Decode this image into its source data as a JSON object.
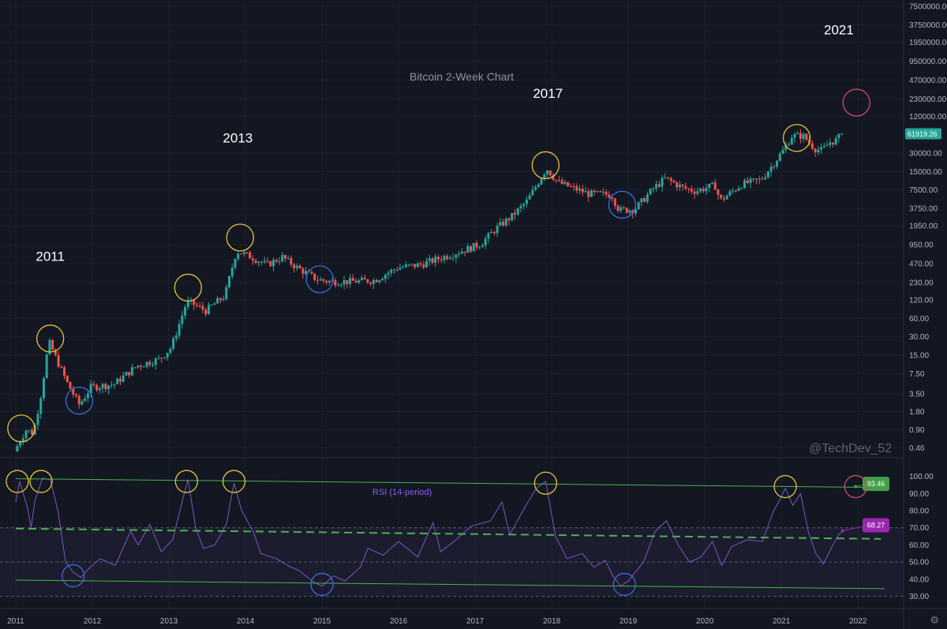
{
  "chart_data": [
    {
      "type": "candlestick",
      "title": "Bitcoin 2-Week Chart",
      "y_scale": "log",
      "ylim": [
        0.4,
        7500000
      ],
      "y_ticks": [
        "7500000.00",
        "3750000.00",
        "1950000.00",
        "950000.00",
        "470000.00",
        "230000.00",
        "120000.00",
        "61919.26",
        "30000.00",
        "15000.00",
        "7500.00",
        "3750.00",
        "1950.00",
        "950.00",
        "470.00",
        "230.00",
        "120.00",
        "60.00",
        "30.00",
        "15.00",
        "7.50",
        "3.50",
        "1.80",
        "0.90",
        "0.46"
      ],
      "x_ticks": [
        "2011",
        "2012",
        "2013",
        "2014",
        "2015",
        "2016",
        "2017",
        "2018",
        "2019",
        "2020",
        "2021",
        "2022"
      ],
      "last_price": "61919.26",
      "last_price_color": "#26a69a",
      "up_color": "#26a69a",
      "down_color": "#ef5350",
      "price_path": [
        [
          2011.0,
          0.4
        ],
        [
          2011.15,
          0.9
        ],
        [
          2011.25,
          0.8
        ],
        [
          2011.35,
          3.5
        ],
        [
          2011.45,
          25
        ],
        [
          2011.55,
          13
        ],
        [
          2011.7,
          5
        ],
        [
          2011.85,
          2.3
        ],
        [
          2012.0,
          4.5
        ],
        [
          2012.3,
          5
        ],
        [
          2012.6,
          10
        ],
        [
          2012.9,
          13
        ],
        [
          2013.05,
          20
        ],
        [
          2013.25,
          110
        ],
        [
          2013.35,
          100
        ],
        [
          2013.5,
          80
        ],
        [
          2013.75,
          140
        ],
        [
          2013.9,
          750
        ],
        [
          2014.1,
          600
        ],
        [
          2014.3,
          450
        ],
        [
          2014.5,
          600
        ],
        [
          2014.7,
          400
        ],
        [
          2014.95,
          260
        ],
        [
          2015.1,
          240
        ],
        [
          2015.4,
          240
        ],
        [
          2015.7,
          250
        ],
        [
          2016.0,
          400
        ],
        [
          2016.3,
          450
        ],
        [
          2016.6,
          600
        ],
        [
          2016.9,
          800
        ],
        [
          2017.1,
          1000
        ],
        [
          2017.3,
          1800
        ],
        [
          2017.5,
          2800
        ],
        [
          2017.7,
          5000
        ],
        [
          2017.95,
          17000
        ],
        [
          2018.1,
          10000
        ],
        [
          2018.3,
          8000
        ],
        [
          2018.5,
          6500
        ],
        [
          2018.8,
          6300
        ],
        [
          2018.9,
          3500
        ],
        [
          2019.1,
          3600
        ],
        [
          2019.35,
          8000
        ],
        [
          2019.5,
          11500
        ],
        [
          2019.75,
          8000
        ],
        [
          2019.9,
          7200
        ],
        [
          2020.15,
          9000
        ],
        [
          2020.22,
          5000
        ],
        [
          2020.5,
          9300
        ],
        [
          2020.75,
          11000
        ],
        [
          2020.9,
          19000
        ],
        [
          2021.05,
          34000
        ],
        [
          2021.15,
          57000
        ],
        [
          2021.3,
          58000
        ],
        [
          2021.45,
          36000
        ],
        [
          2021.55,
          33000
        ],
        [
          2021.65,
          45000
        ],
        [
          2021.75,
          50000
        ],
        [
          2021.8,
          61919.26
        ]
      ],
      "annotations": [
        {
          "text": "2011",
          "x": 2011.45,
          "y": 520
        },
        {
          "text": "2013",
          "x": 2013.9,
          "y": 45000
        },
        {
          "text": "2017",
          "x": 2017.95,
          "y": 240000
        },
        {
          "text": "2021",
          "x": 2021.75,
          "y": 2600000
        }
      ],
      "circles": [
        {
          "x": 2011.07,
          "y": 0.95,
          "color": "#e5c33a"
        },
        {
          "x": 2011.45,
          "y": 28,
          "color": "#e5c33a"
        },
        {
          "x": 2011.83,
          "y": 2.7,
          "color": "#3a6fd8"
        },
        {
          "x": 2013.25,
          "y": 190,
          "color": "#e5c33a"
        },
        {
          "x": 2013.93,
          "y": 1250,
          "color": "#e5c33a"
        },
        {
          "x": 2014.97,
          "y": 260,
          "color": "#3a6fd8"
        },
        {
          "x": 2017.92,
          "y": 19000,
          "color": "#e5c33a"
        },
        {
          "x": 2018.92,
          "y": 4300,
          "color": "#3a6fd8"
        },
        {
          "x": 2021.2,
          "y": 53000,
          "color": "#e5c33a"
        },
        {
          "x": 2021.98,
          "y": 200000,
          "color": "#d24a6a"
        }
      ],
      "watermark": "@TechDev_52"
    },
    {
      "type": "line",
      "label": "RSI (14-period)",
      "ylim": [
        28,
        103
      ],
      "y_ticks": [
        "100.00",
        "90.00",
        "80.00",
        "70.00",
        "60.00",
        "50.00",
        "40.00",
        "30.00"
      ],
      "line_color": "#7e57c2",
      "rsi_path": [
        [
          2011.0,
          85
        ],
        [
          2011.05,
          97
        ],
        [
          2011.15,
          82
        ],
        [
          2011.2,
          70
        ],
        [
          2011.25,
          86
        ],
        [
          2011.35,
          99
        ],
        [
          2011.45,
          98
        ],
        [
          2011.55,
          80
        ],
        [
          2011.65,
          50
        ],
        [
          2011.75,
          44
        ],
        [
          2011.85,
          41
        ],
        [
          2011.95,
          46
        ],
        [
          2012.1,
          52
        ],
        [
          2012.3,
          48
        ],
        [
          2012.5,
          68
        ],
        [
          2012.6,
          60
        ],
        [
          2012.75,
          72
        ],
        [
          2012.9,
          56
        ],
        [
          2013.05,
          63
        ],
        [
          2013.2,
          90
        ],
        [
          2013.25,
          98
        ],
        [
          2013.35,
          70
        ],
        [
          2013.45,
          58
        ],
        [
          2013.6,
          60
        ],
        [
          2013.75,
          72
        ],
        [
          2013.85,
          96
        ],
        [
          2013.95,
          80
        ],
        [
          2014.1,
          68
        ],
        [
          2014.2,
          55
        ],
        [
          2014.4,
          52
        ],
        [
          2014.55,
          48
        ],
        [
          2014.7,
          45
        ],
        [
          2014.9,
          38
        ],
        [
          2015.0,
          36
        ],
        [
          2015.15,
          42
        ],
        [
          2015.3,
          39
        ],
        [
          2015.5,
          47
        ],
        [
          2015.6,
          58
        ],
        [
          2015.8,
          54
        ],
        [
          2016.0,
          62
        ],
        [
          2016.25,
          53
        ],
        [
          2016.45,
          73
        ],
        [
          2016.55,
          56
        ],
        [
          2016.75,
          63
        ],
        [
          2016.95,
          71
        ],
        [
          2017.2,
          74
        ],
        [
          2017.35,
          85
        ],
        [
          2017.45,
          66
        ],
        [
          2017.65,
          82
        ],
        [
          2017.8,
          93
        ],
        [
          2017.92,
          97
        ],
        [
          2018.05,
          65
        ],
        [
          2018.2,
          52
        ],
        [
          2018.4,
          55
        ],
        [
          2018.55,
          47
        ],
        [
          2018.7,
          51
        ],
        [
          2018.8,
          42
        ],
        [
          2018.9,
          36
        ],
        [
          2019.0,
          39
        ],
        [
          2019.2,
          50
        ],
        [
          2019.35,
          68
        ],
        [
          2019.5,
          74
        ],
        [
          2019.65,
          60
        ],
        [
          2019.8,
          50
        ],
        [
          2019.95,
          53
        ],
        [
          2020.1,
          62
        ],
        [
          2020.22,
          48
        ],
        [
          2020.35,
          59
        ],
        [
          2020.55,
          63
        ],
        [
          2020.75,
          62
        ],
        [
          2020.9,
          80
        ],
        [
          2021.0,
          88
        ],
        [
          2021.05,
          93
        ],
        [
          2021.15,
          83
        ],
        [
          2021.25,
          90
        ],
        [
          2021.35,
          68
        ],
        [
          2021.45,
          55
        ],
        [
          2021.55,
          49
        ],
        [
          2021.65,
          58
        ],
        [
          2021.75,
          66
        ],
        [
          2021.8,
          68.27
        ]
      ],
      "upper_trend": {
        "from": [
          2011.0,
          98.6
        ],
        "to": [
          2022.35,
          93.46
        ],
        "color": "#4caf50"
      },
      "lower_trend": {
        "from": [
          2011.0,
          39.5
        ],
        "to": [
          2022.35,
          34.5
        ],
        "color": "#4caf50"
      },
      "mid_trend": {
        "from": [
          2011.0,
          69.5
        ],
        "to": [
          2022.3,
          63.5
        ],
        "color": "#4caf50"
      },
      "band": {
        "upper": 70,
        "lower": 30
      },
      "level_lines": [
        70,
        50,
        30
      ],
      "badges": [
        {
          "value": "93.46",
          "y": 95.6,
          "color": "#43a047"
        },
        {
          "value": "68.27",
          "y": 71.5,
          "color": "#9c27b0"
        }
      ],
      "circles": [
        {
          "x": 2011.02,
          "y": 97,
          "color": "#e5c33a"
        },
        {
          "x": 2011.33,
          "y": 97,
          "color": "#e5c33a"
        },
        {
          "x": 2011.75,
          "y": 42,
          "color": "#3a6fd8"
        },
        {
          "x": 2013.23,
          "y": 97,
          "color": "#e5c33a"
        },
        {
          "x": 2013.85,
          "y": 97,
          "color": "#e5c33a"
        },
        {
          "x": 2015.0,
          "y": 37,
          "color": "#3a6fd8"
        },
        {
          "x": 2017.92,
          "y": 96,
          "color": "#e5c33a"
        },
        {
          "x": 2018.95,
          "y": 37,
          "color": "#3a6fd8"
        },
        {
          "x": 2021.05,
          "y": 94,
          "color": "#e5c33a"
        },
        {
          "x": 2021.97,
          "y": 94,
          "color": "#d24a6a"
        }
      ]
    }
  ],
  "icons": {
    "settings": "gear-icon"
  }
}
